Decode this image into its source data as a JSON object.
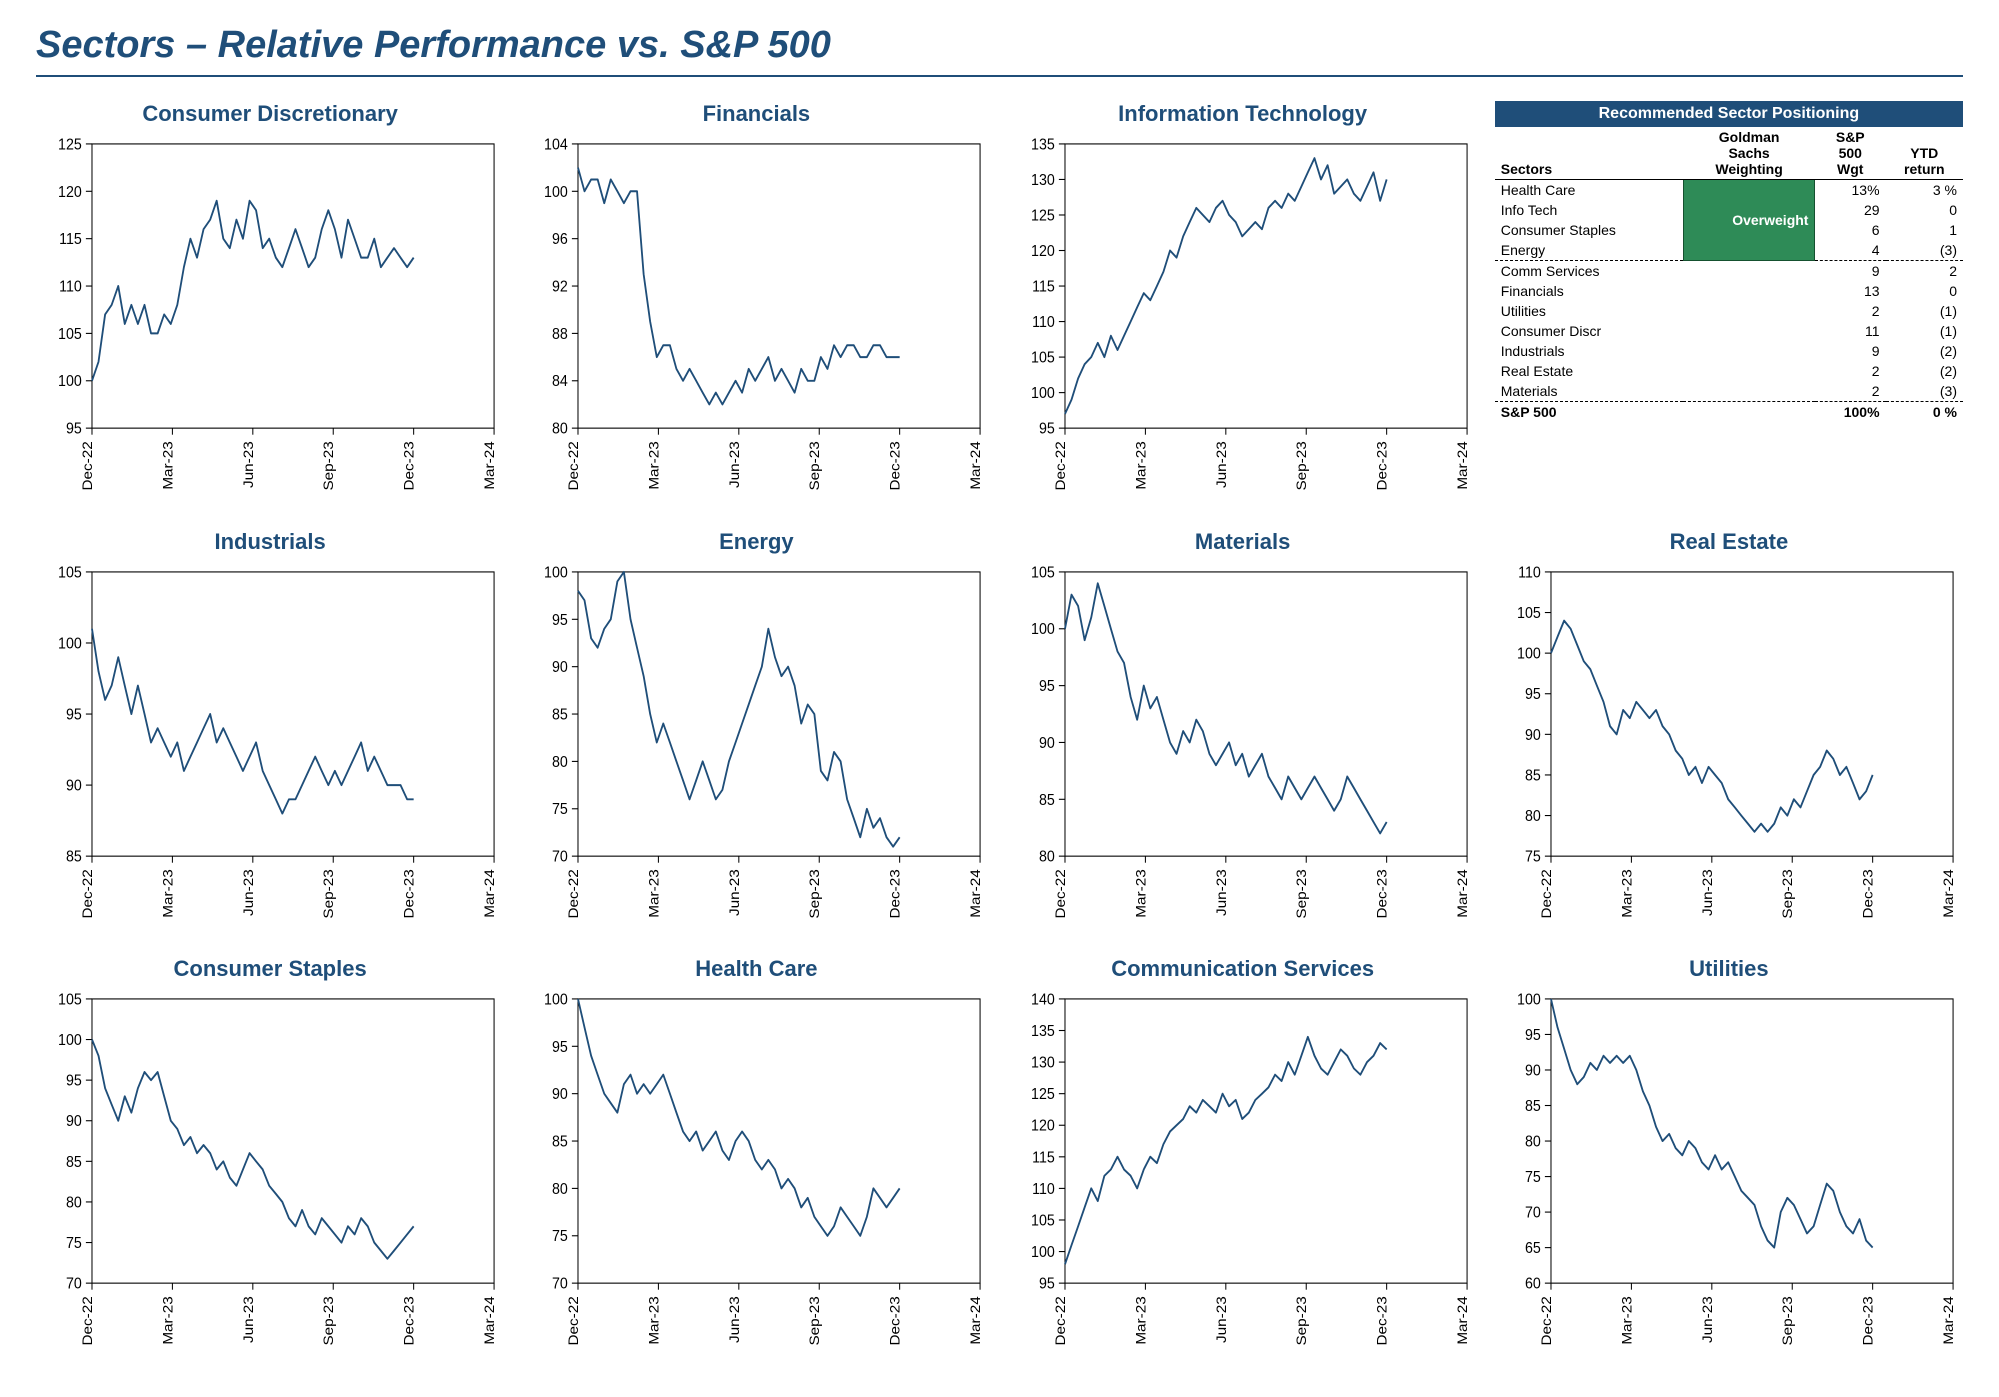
{
  "page": {
    "title": "Sectors – Relative Performance vs. S&P 500",
    "background_color": "#ffffff",
    "title_color": "#1f4e79",
    "title_fontsize": 38,
    "rule_color": "#1f4e79"
  },
  "shared_axis": {
    "x_labels": [
      "Dec-22",
      "Mar-23",
      "Jun-23",
      "Sep-23",
      "Dec-23",
      "Mar-24"
    ],
    "tick_color": "#000000",
    "border_color": "#000000",
    "line_color": "#1f4e79",
    "line_width": 1.8,
    "title_fontsize": 22,
    "tick_fontsize": 14,
    "background_color": "#ffffff"
  },
  "charts": [
    {
      "title": "Consumer Discretionary",
      "ymin": 95,
      "ymax": 125,
      "ystep": 5,
      "values": [
        100,
        102,
        107,
        108,
        110,
        106,
        108,
        106,
        108,
        105,
        105,
        107,
        106,
        108,
        112,
        115,
        113,
        116,
        117,
        119,
        115,
        114,
        117,
        115,
        119,
        118,
        114,
        115,
        113,
        112,
        114,
        116,
        114,
        112,
        113,
        116,
        118,
        116,
        113,
        117,
        115,
        113,
        113,
        115,
        112,
        113,
        114,
        113,
        112,
        113
      ]
    },
    {
      "title": "Financials",
      "ymin": 80,
      "ymax": 104,
      "ystep": 4,
      "values": [
        102,
        100,
        101,
        101,
        99,
        101,
        100,
        99,
        100,
        100,
        93,
        89,
        86,
        87,
        87,
        85,
        84,
        85,
        84,
        83,
        82,
        83,
        82,
        83,
        84,
        83,
        85,
        84,
        85,
        86,
        84,
        85,
        84,
        83,
        85,
        84,
        84,
        86,
        85,
        87,
        86,
        87,
        87,
        86,
        86,
        87,
        87,
        86,
        86,
        86
      ]
    },
    {
      "title": "Information Technology",
      "ymin": 95,
      "ymax": 135,
      "ystep": 5,
      "values": [
        97,
        99,
        102,
        104,
        105,
        107,
        105,
        108,
        106,
        108,
        110,
        112,
        114,
        113,
        115,
        117,
        120,
        119,
        122,
        124,
        126,
        125,
        124,
        126,
        127,
        125,
        124,
        122,
        123,
        124,
        123,
        126,
        127,
        126,
        128,
        127,
        129,
        131,
        133,
        130,
        132,
        128,
        129,
        130,
        128,
        127,
        129,
        131,
        127,
        130
      ]
    },
    {
      "title": "Industrials",
      "ymin": 85,
      "ymax": 105,
      "ystep": 5,
      "values": [
        101,
        98,
        96,
        97,
        99,
        97,
        95,
        97,
        95,
        93,
        94,
        93,
        92,
        93,
        91,
        92,
        93,
        94,
        95,
        93,
        94,
        93,
        92,
        91,
        92,
        93,
        91,
        90,
        89,
        88,
        89,
        89,
        90,
        91,
        92,
        91,
        90,
        91,
        90,
        91,
        92,
        93,
        91,
        92,
        91,
        90,
        90,
        90,
        89,
        89
      ]
    },
    {
      "title": "Energy",
      "ymin": 70,
      "ymax": 100,
      "ystep": 5,
      "values": [
        98,
        97,
        93,
        92,
        94,
        95,
        99,
        100,
        95,
        92,
        89,
        85,
        82,
        84,
        82,
        80,
        78,
        76,
        78,
        80,
        78,
        76,
        77,
        80,
        82,
        84,
        86,
        88,
        90,
        94,
        91,
        89,
        90,
        88,
        84,
        86,
        85,
        79,
        78,
        81,
        80,
        76,
        74,
        72,
        75,
        73,
        74,
        72,
        71,
        72
      ]
    },
    {
      "title": "Materials",
      "ymin": 80,
      "ymax": 105,
      "ystep": 5,
      "values": [
        100,
        103,
        102,
        99,
        101,
        104,
        102,
        100,
        98,
        97,
        94,
        92,
        95,
        93,
        94,
        92,
        90,
        89,
        91,
        90,
        92,
        91,
        89,
        88,
        89,
        90,
        88,
        89,
        87,
        88,
        89,
        87,
        86,
        85,
        87,
        86,
        85,
        86,
        87,
        86,
        85,
        84,
        85,
        87,
        86,
        85,
        84,
        83,
        82,
        83
      ]
    },
    {
      "title": "Real Estate",
      "ymin": 75,
      "ymax": 110,
      "ystep": 5,
      "values": [
        100,
        102,
        104,
        103,
        101,
        99,
        98,
        96,
        94,
        91,
        90,
        93,
        92,
        94,
        93,
        92,
        93,
        91,
        90,
        88,
        87,
        85,
        86,
        84,
        86,
        85,
        84,
        82,
        81,
        80,
        79,
        78,
        79,
        78,
        79,
        81,
        80,
        82,
        81,
        83,
        85,
        86,
        88,
        87,
        85,
        86,
        84,
        82,
        83,
        85
      ]
    },
    {
      "title": "Consumer Staples",
      "ymin": 70,
      "ymax": 105,
      "ystep": 5,
      "values": [
        100,
        98,
        94,
        92,
        90,
        93,
        91,
        94,
        96,
        95,
        96,
        93,
        90,
        89,
        87,
        88,
        86,
        87,
        86,
        84,
        85,
        83,
        82,
        84,
        86,
        85,
        84,
        82,
        81,
        80,
        78,
        77,
        79,
        77,
        76,
        78,
        77,
        76,
        75,
        77,
        76,
        78,
        77,
        75,
        74,
        73,
        74,
        75,
        76,
        77
      ]
    },
    {
      "title": "Health Care",
      "ymin": 70,
      "ymax": 100,
      "ystep": 5,
      "values": [
        100,
        97,
        94,
        92,
        90,
        89,
        88,
        91,
        92,
        90,
        91,
        90,
        91,
        92,
        90,
        88,
        86,
        85,
        86,
        84,
        85,
        86,
        84,
        83,
        85,
        86,
        85,
        83,
        82,
        83,
        82,
        80,
        81,
        80,
        78,
        79,
        77,
        76,
        75,
        76,
        78,
        77,
        76,
        75,
        77,
        80,
        79,
        78,
        79,
        80
      ]
    },
    {
      "title": "Communication Services",
      "ymin": 95,
      "ymax": 140,
      "ystep": 5,
      "values": [
        98,
        101,
        104,
        107,
        110,
        108,
        112,
        113,
        115,
        113,
        112,
        110,
        113,
        115,
        114,
        117,
        119,
        120,
        121,
        123,
        122,
        124,
        123,
        122,
        125,
        123,
        124,
        121,
        122,
        124,
        125,
        126,
        128,
        127,
        130,
        128,
        131,
        134,
        131,
        129,
        128,
        130,
        132,
        131,
        129,
        128,
        130,
        131,
        133,
        132
      ]
    },
    {
      "title": "Utilities",
      "ymin": 60,
      "ymax": 100,
      "ystep": 5,
      "values": [
        100,
        96,
        93,
        90,
        88,
        89,
        91,
        90,
        92,
        91,
        92,
        91,
        92,
        90,
        87,
        85,
        82,
        80,
        81,
        79,
        78,
        80,
        79,
        77,
        76,
        78,
        76,
        77,
        75,
        73,
        72,
        71,
        68,
        66,
        65,
        70,
        72,
        71,
        69,
        67,
        68,
        71,
        74,
        73,
        70,
        68,
        67,
        69,
        66,
        65
      ]
    }
  ],
  "positioning": {
    "title": "Recommended Sector Positioning",
    "title_bg": "#1f4e79",
    "title_color": "#ffffff",
    "badge_text": "Overweight",
    "badge_bg": "#2e8b57",
    "badge_color": "#ffffff",
    "columns": [
      "Sectors",
      "Goldman\nSachs\nWeighting",
      "S&P\n500\nWgt",
      "YTD\nreturn"
    ],
    "overweight_rows": [
      {
        "sector": "Health Care",
        "wgt": "13%",
        "ytd": "3 %"
      },
      {
        "sector": "Info Tech",
        "wgt": "29",
        "ytd": "0"
      },
      {
        "sector": "Consumer Staples",
        "wgt": "6",
        "ytd": "1"
      },
      {
        "sector": "Energy",
        "wgt": "4",
        "ytd": "(3)"
      }
    ],
    "neutral_rows": [
      {
        "sector": "Comm Services",
        "wgt": "9",
        "ytd": "2"
      },
      {
        "sector": "Financials",
        "wgt": "13",
        "ytd": "0"
      },
      {
        "sector": "Utilities",
        "wgt": "2",
        "ytd": "(1)"
      },
      {
        "sector": "Consumer Discr",
        "wgt": "11",
        "ytd": "(1)"
      },
      {
        "sector": "Industrials",
        "wgt": "9",
        "ytd": "(2)"
      },
      {
        "sector": "Real Estate",
        "wgt": "2",
        "ytd": "(2)"
      },
      {
        "sector": "Materials",
        "wgt": "2",
        "ytd": "(3)"
      }
    ],
    "total": {
      "sector": "S&P 500",
      "wgt": "100%",
      "ytd": "0 %"
    }
  }
}
